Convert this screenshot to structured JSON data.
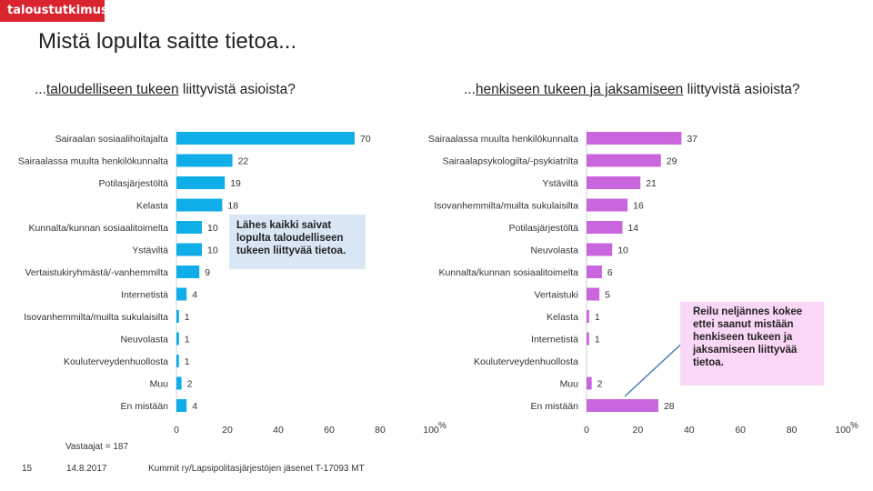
{
  "header": {
    "logo_text": "taloustutkimus",
    "title": "Mistä lopulta saitte tietoa..."
  },
  "left_subtitle": {
    "prefix": "...",
    "underlined": "taloudelliseen tukeen",
    "suffix": " liittyvistä asioista?"
  },
  "right_subtitle": {
    "prefix": "...",
    "underlined": "henkiseen tukeen ja jaksamiseen",
    "suffix": " liittyvistä asioista?"
  },
  "callouts": {
    "left": "Lähes kaikki saivat lopulta taloudelliseen tukeen liittyvää tietoa.",
    "right": "Reilu neljännes kokee ettei saanut mistään henkiseen tukeen ja jaksamiseen liittyvää tietoa."
  },
  "footer": {
    "respondents": "Vastaajat = 187",
    "page_number": "15",
    "date": "14.8.2017",
    "source": "Kummit ry/Lapsipolitasjärjestöjen jäsenet T-17093 MT"
  },
  "colors": {
    "left_bar": "#0faee8",
    "right_bar": "#c966dd",
    "logo": "#d9232e"
  },
  "chart_data": [
    {
      "type": "bar",
      "orientation": "horizontal",
      "title": "...taloudelliseen tukeen liittyvistä asioista?",
      "categories": [
        "Sairaalan sosiaalihoitajalta",
        "Sairaalassa muulta henkilökunnalta",
        "Potilasjärjestöltä",
        "Kelasta",
        "Kunnalta/kunnan sosiaalitoimelta",
        "Ystäviltä",
        "Vertaistukiryhmästä/-vanhemmilta",
        "Internetistä",
        "Isovanhemmilta/muilta sukulaisilta",
        "Neuvolasta",
        "Kouluterveydenhuollosta",
        "Muu",
        "En mistään"
      ],
      "values": [
        70,
        22,
        19,
        18,
        10,
        10,
        9,
        4,
        1,
        1,
        1,
        2,
        4
      ],
      "xlim": [
        0,
        100
      ],
      "ticks": [
        "0",
        "20",
        "40",
        "60",
        "80",
        "100"
      ],
      "unit": "%"
    },
    {
      "type": "bar",
      "orientation": "horizontal",
      "title": "...henkiseen tukeen ja jaksamiseen liittyvistä asioista?",
      "categories": [
        "Sairaalassa muulta henkilökunnalta",
        "Sairaalapsykologilta/-psykiatrilta",
        "Ystäviltä",
        "Isovanhemmilta/muilta sukulaisilta",
        "Potilasjärjestöltä",
        "Neuvolasta",
        "Kunnalta/kunnan sosiaalitoimelta",
        "Vertaistuki",
        "Kelasta",
        "Internetistä",
        "Kouluterveydenhuollosta",
        "Muu",
        "En mistään"
      ],
      "values": [
        37,
        29,
        21,
        16,
        14,
        10,
        6,
        5,
        1,
        1,
        null,
        2,
        28
      ],
      "xlim": [
        0,
        100
      ],
      "ticks": [
        "0",
        "20",
        "40",
        "60",
        "80",
        "100"
      ],
      "unit": "%"
    }
  ]
}
